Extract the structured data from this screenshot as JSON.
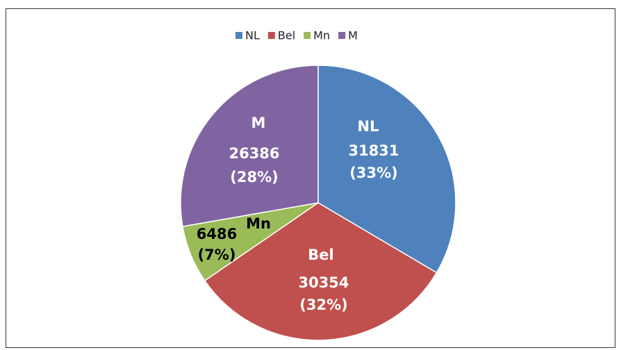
{
  "chart_data": {
    "type": "pie",
    "categories": [
      "NL",
      "Bel",
      "Mn",
      "M"
    ],
    "values": [
      31831,
      30354,
      6486,
      26386
    ],
    "percent_labels": [
      "(33%)",
      "(32%)",
      "(7%)",
      "(28%)"
    ],
    "colors": [
      "#4f81bd",
      "#c0504d",
      "#9bbb59",
      "#8064a2"
    ],
    "legend": "top"
  }
}
